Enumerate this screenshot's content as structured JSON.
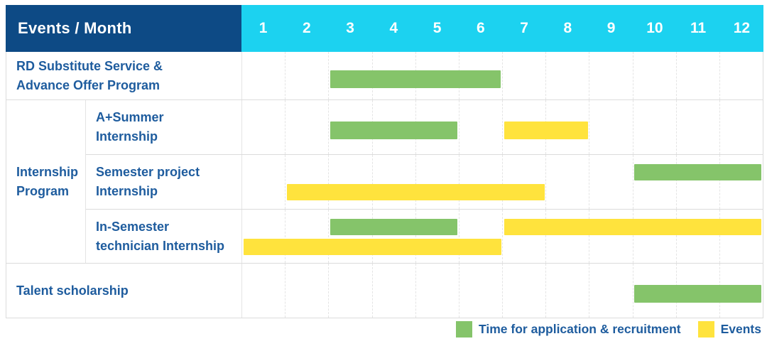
{
  "colors": {
    "header_bg": "#0d4a85",
    "months_bg": "#1cd2f0",
    "header_text": "#ffffff",
    "label_text": "#1e5c9e",
    "application_bar": "#85c46a",
    "event_bar": "#ffe33d",
    "grid_line": "#e4e4e4",
    "row_border": "#dcdcdc"
  },
  "chart_data": {
    "type": "gantt",
    "title": "Events / Month",
    "x_axis": {
      "unit": "month",
      "range": [
        1,
        12
      ]
    },
    "months": [
      "1",
      "2",
      "3",
      "4",
      "5",
      "6",
      "7",
      "8",
      "9",
      "10",
      "11",
      "12"
    ],
    "group": {
      "key": "internship-program",
      "label_lines": [
        "Internship",
        "Program"
      ]
    },
    "rows": [
      {
        "key": "rd-substitute",
        "label_lines": [
          "RD Substitute Service &",
          "Advance Offer Program"
        ],
        "group": null,
        "bars": [
          {
            "series": "application",
            "color": "green",
            "start_month": 3,
            "end_month": 6,
            "lane": "middle"
          }
        ]
      },
      {
        "key": "a-plus-summer",
        "label_lines": [
          "A+Summer",
          "Internship"
        ],
        "group": "Internship Program",
        "bars": [
          {
            "series": "application",
            "color": "green",
            "start_month": 3,
            "end_month": 5,
            "lane": "middle"
          },
          {
            "series": "event",
            "color": "yellow",
            "start_month": 7,
            "end_month": 8,
            "lane": "middle"
          }
        ]
      },
      {
        "key": "semester-project",
        "label_lines": [
          "Semester project",
          "Internship"
        ],
        "group": "Internship Program",
        "bars": [
          {
            "series": "application",
            "color": "green",
            "start_month": 10,
            "end_month": 12,
            "lane": "top"
          },
          {
            "series": "event",
            "color": "yellow",
            "start_month": 2,
            "end_month": 7,
            "lane": "bottom"
          }
        ]
      },
      {
        "key": "in-semester-technician",
        "label_lines": [
          "In-Semester",
          "technician Internship"
        ],
        "group": "Internship Program",
        "bars": [
          {
            "series": "application",
            "color": "green",
            "start_month": 3,
            "end_month": 5,
            "lane": "top"
          },
          {
            "series": "event",
            "color": "yellow",
            "start_month": 7,
            "end_month": 12,
            "lane": "top"
          },
          {
            "series": "event",
            "color": "yellow",
            "start_month": 1,
            "end_month": 6,
            "lane": "bottom"
          }
        ]
      },
      {
        "key": "talent-scholarship",
        "label_lines": [
          "Talent scholarship"
        ],
        "group": null,
        "bars": [
          {
            "series": "application",
            "color": "green",
            "start_month": 10,
            "end_month": 12,
            "lane": "middle"
          }
        ]
      }
    ],
    "legend": [
      {
        "key": "application",
        "label": "Time for application & recruitment",
        "color": "green"
      },
      {
        "key": "event",
        "label": "Events",
        "color": "yellow"
      }
    ]
  }
}
